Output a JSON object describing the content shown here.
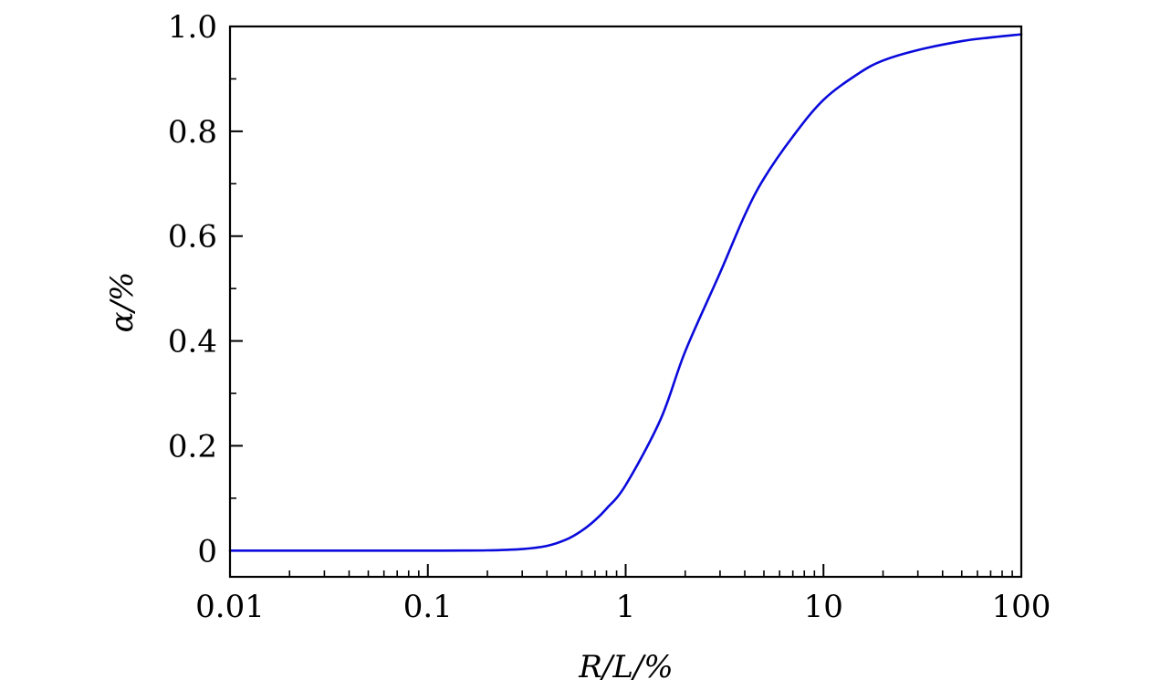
{
  "chart_data": {
    "type": "line",
    "xlabel": "R/L/%",
    "ylabel": "α/%",
    "x_scale": "log",
    "xlim": [
      0.01,
      100
    ],
    "ylim": [
      -0.05,
      1.0
    ],
    "x_ticks": [
      0.01,
      0.1,
      1,
      10,
      100
    ],
    "x_tick_labels": [
      "0.01",
      "0.1",
      "1",
      "10",
      "100"
    ],
    "y_ticks": [
      0,
      0.2,
      0.4,
      0.6,
      0.8,
      1.0
    ],
    "y_tick_labels": [
      "0",
      "0.2",
      "0.4",
      "0.6",
      "0.8",
      "1.0"
    ],
    "grid": false,
    "legend": "none",
    "series": [
      {
        "color": "#0a0adc",
        "x": [
          0.01,
          0.05,
          0.1,
          0.2,
          0.3,
          0.4,
          0.5,
          0.6,
          0.7,
          0.8,
          1.0,
          1.5,
          2.0,
          3.0,
          4.0,
          5.0,
          7.0,
          10.0,
          15.0,
          20.0,
          30.0,
          50.0,
          70.0,
          100.0
        ],
        "y": [
          0.0,
          0.0,
          0.0,
          0.0005,
          0.003,
          0.009,
          0.021,
          0.038,
          0.058,
          0.08,
          0.125,
          0.25,
          0.38,
          0.53,
          0.64,
          0.71,
          0.79,
          0.86,
          0.91,
          0.935,
          0.955,
          0.972,
          0.979,
          0.985
        ]
      }
    ]
  }
}
